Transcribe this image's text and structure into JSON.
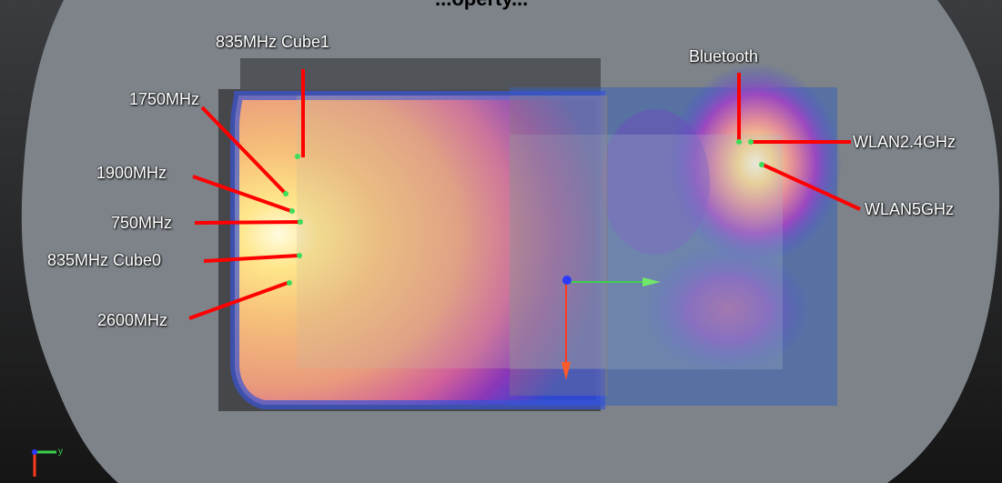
{
  "title_fragment": "...operty...",
  "labels": {
    "cube1": "835MHz Cube1",
    "l1750": "1750MHz",
    "l1900": "1900MHz",
    "l750": "750MHz",
    "cube0": "835MHz Cube0",
    "l2600": "2600MHz",
    "bluetooth": "Bluetooth",
    "wlan24": "WLAN2.4GHz",
    "wlan5": "WLAN5GHz"
  },
  "colors": {
    "background_top": "#2a2a2a",
    "background_bottom": "#1a1a1a",
    "phantom": "#7d8389",
    "callout_line": "#ff0000",
    "probe_point": "#3cdd5a",
    "axis_x": "#3cd24a",
    "axis_y": "#ff3a1a",
    "axis_z": "#2a3aff"
  }
}
